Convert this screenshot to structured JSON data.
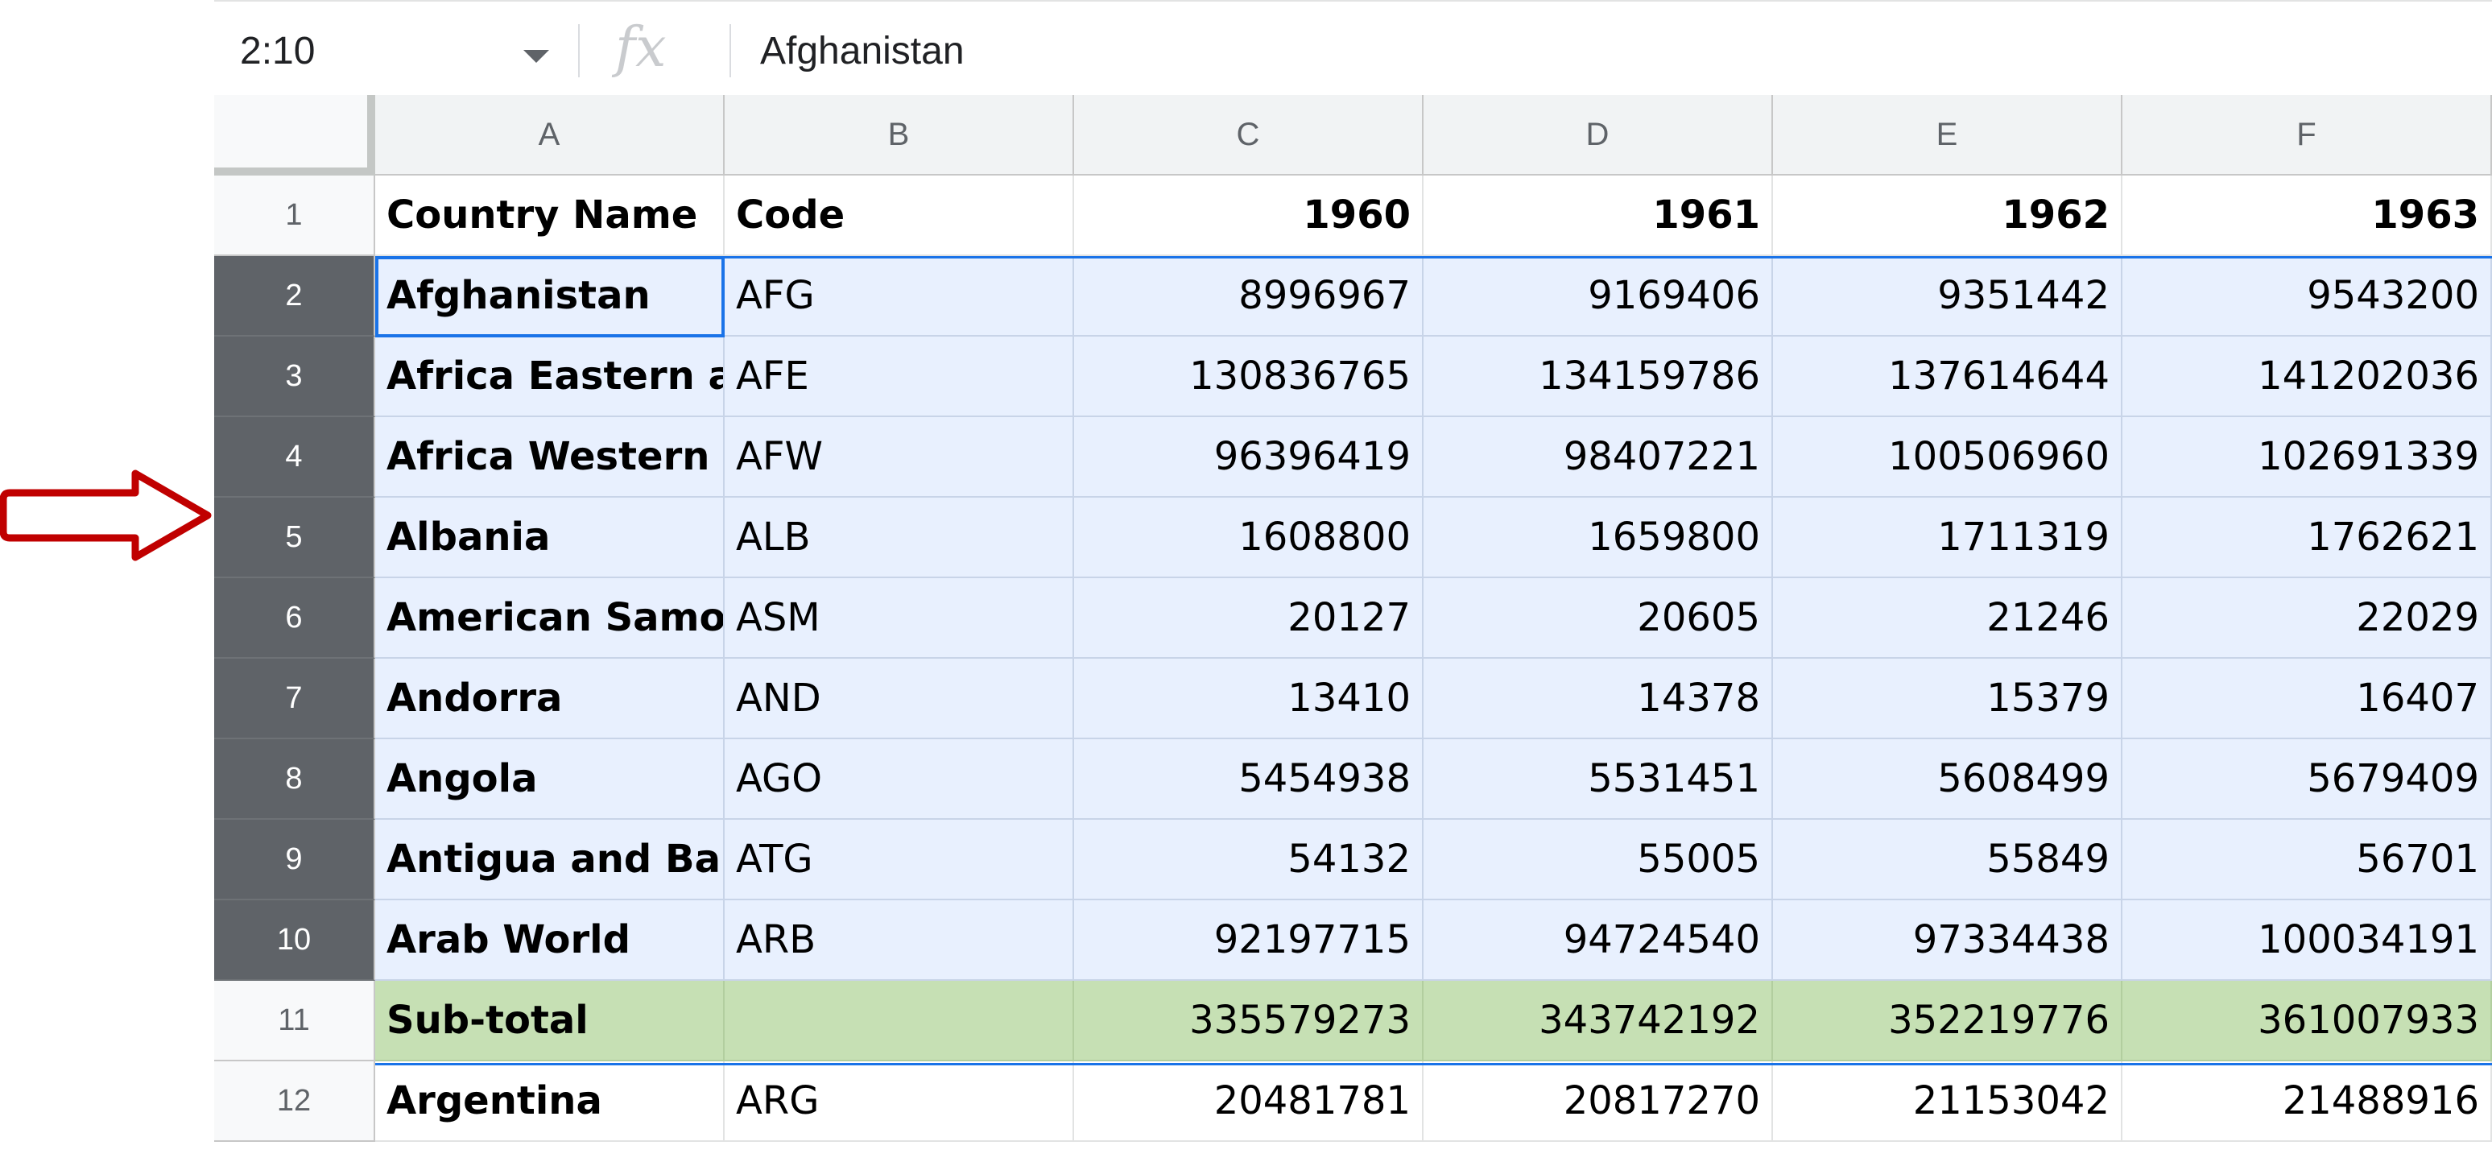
{
  "formula_bar": {
    "namebox_value": "2:10",
    "fx_label": "fx",
    "content": "Afghanistan"
  },
  "columns": [
    "A",
    "B",
    "C",
    "D",
    "E",
    "F"
  ],
  "rows": [
    {
      "num": "1",
      "name": "Country Name",
      "code": "Code",
      "values": [
        "1960",
        "1961",
        "1962",
        "1963"
      ]
    },
    {
      "num": "2",
      "name": "Afghanistan",
      "code": "AFG",
      "values": [
        "8996967",
        "9169406",
        "9351442",
        "9543200"
      ]
    },
    {
      "num": "3",
      "name": "Africa Eastern and Southern",
      "code": "AFE",
      "values": [
        "130836765",
        "134159786",
        "137614644",
        "141202036"
      ]
    },
    {
      "num": "4",
      "name": "Africa Western and Central",
      "code": "AFW",
      "values": [
        "96396419",
        "98407221",
        "100506960",
        "102691339"
      ]
    },
    {
      "num": "5",
      "name": "Albania",
      "code": "ALB",
      "values": [
        "1608800",
        "1659800",
        "1711319",
        "1762621"
      ]
    },
    {
      "num": "6",
      "name": "American Samoa",
      "code": "ASM",
      "values": [
        "20127",
        "20605",
        "21246",
        "22029"
      ]
    },
    {
      "num": "7",
      "name": "Andorra",
      "code": "AND",
      "values": [
        "13410",
        "14378",
        "15379",
        "16407"
      ]
    },
    {
      "num": "8",
      "name": "Angola",
      "code": "AGO",
      "values": [
        "5454938",
        "5531451",
        "5608499",
        "5679409"
      ]
    },
    {
      "num": "9",
      "name": "Antigua and Barbuda",
      "code": "ATG",
      "values": [
        "54132",
        "55005",
        "55849",
        "56701"
      ]
    },
    {
      "num": "10",
      "name": "Arab World",
      "code": "ARB",
      "values": [
        "92197715",
        "94724540",
        "97334438",
        "100034191"
      ]
    },
    {
      "num": "11",
      "name": "Sub-total",
      "code": "",
      "values": [
        "335579273",
        "343742192",
        "352219776",
        "361007933"
      ]
    },
    {
      "num": "12",
      "name": "Argentina",
      "code": "ARG",
      "values": [
        "20481781",
        "20817270",
        "21153042",
        "21488916"
      ]
    }
  ],
  "colors": {
    "selection_fill": "#e8f0fe",
    "selection_border": "#1a73e8",
    "selected_row_header": "#5f6368",
    "subtotal_fill": "#c6e0b4",
    "annotation_arrow": "#c00000"
  },
  "annotation": {
    "icon": "right-arrow-icon"
  }
}
